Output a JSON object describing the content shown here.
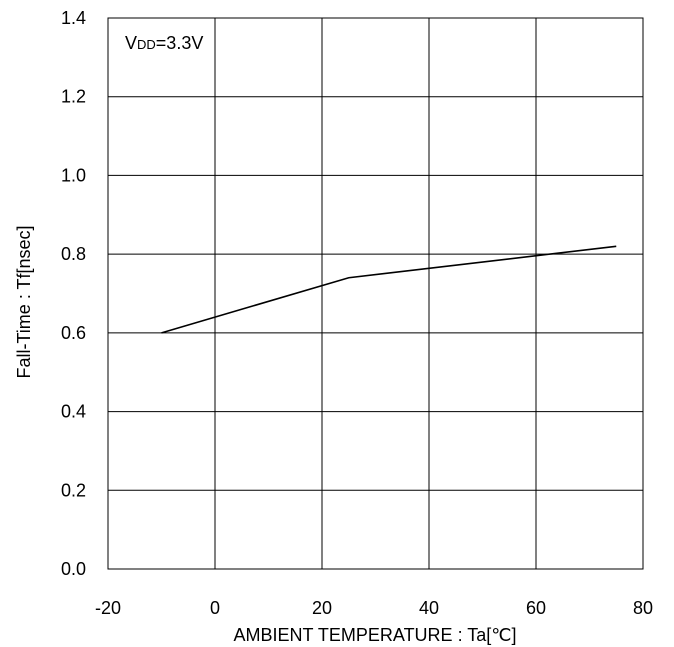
{
  "chart_data": {
    "type": "line",
    "title": "",
    "xlabel": "AMBIENT TEMPERATURE : Ta[℃]",
    "ylabel": "Fall-Time : Tf[nsec]",
    "xlim": [
      -20,
      80
    ],
    "ylim": [
      0.0,
      1.4
    ],
    "x_ticks": [
      -20,
      0,
      20,
      40,
      60,
      80
    ],
    "x_tick_labels": [
      "-20",
      "0",
      "20",
      "40",
      "60",
      "80"
    ],
    "y_ticks": [
      0.0,
      0.2,
      0.4,
      0.6,
      0.8,
      1.0,
      1.2,
      1.4
    ],
    "y_tick_labels": [
      "0.0",
      "0.2",
      "0.4",
      "0.6",
      "0.8",
      "1.0",
      "1.2",
      "1.4"
    ],
    "grid": true,
    "legend": "none",
    "annotation": {
      "main": "V",
      "sub": "DD",
      "rest": "=3.3V"
    },
    "series": [
      {
        "x": [
          -10,
          25,
          75
        ],
        "y": [
          0.6,
          0.74,
          0.82
        ],
        "color": "#000000"
      }
    ]
  }
}
